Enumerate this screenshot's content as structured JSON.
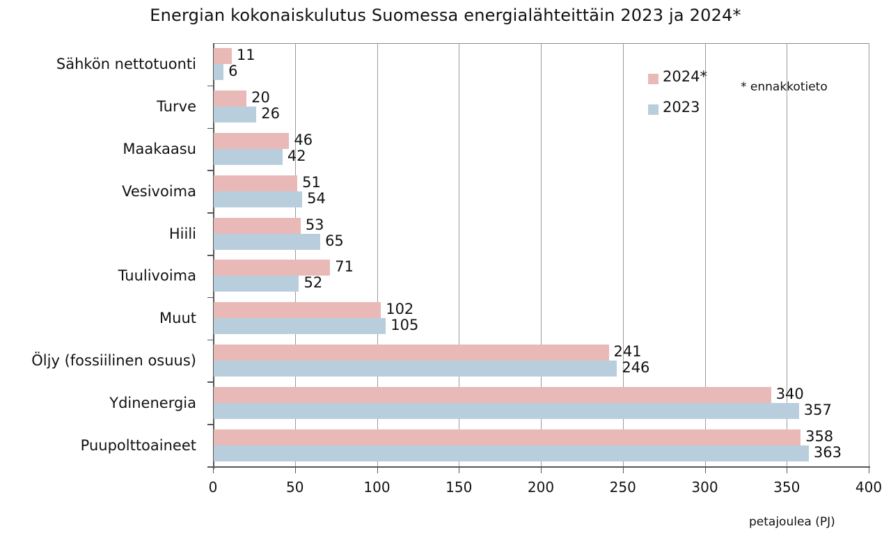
{
  "chart_data": {
    "type": "bar",
    "orientation": "horizontal",
    "title": "Energian kokonaiskulutus Suomessa energialähteittäin 2023 ja 2024*",
    "xlabel": "petajoulea (PJ)",
    "ylabel": "",
    "xlim": [
      0,
      400
    ],
    "x_ticks": [
      "0",
      "50",
      "100",
      "150",
      "200",
      "250",
      "300",
      "350",
      "400"
    ],
    "grid": "vertical",
    "legend_position": "top-right inside",
    "categories": [
      "Sähkön nettotuonti",
      "Turve",
      "Maakaasu",
      "Vesivoima",
      "Hiili",
      "Tuulivoima",
      "Muut",
      "Öljy (fossiilinen osuus)",
      "Ydinenergia",
      "Puupolttoaineet"
    ],
    "series": [
      {
        "name": "2024*",
        "color": "#e8b9b7",
        "values": [
          11,
          20,
          46,
          51,
          53,
          71,
          102,
          241,
          340,
          358
        ]
      },
      {
        "name": "2023",
        "color": "#b9cedd",
        "values": [
          6,
          26,
          42,
          54,
          65,
          52,
          105,
          246,
          357,
          363
        ]
      }
    ],
    "annotations": [
      "* ennakkotieto"
    ]
  },
  "title": "Energian kokonaiskulutus Suomessa energialähteittäin 2023 ja 2024*",
  "legend": [
    {
      "label": "2024*",
      "color": "#e8b9b7"
    },
    {
      "label": "2023",
      "color": "#b9cedd"
    }
  ],
  "note": "* ennakkotieto",
  "unit_label": "petajoulea (PJ)"
}
